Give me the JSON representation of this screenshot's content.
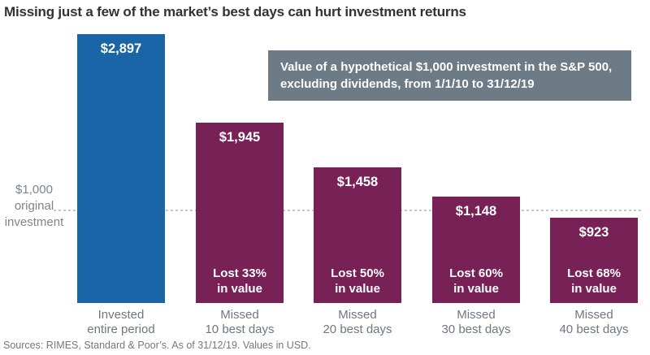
{
  "annotation": {
    "line1": "Value of a hypothetical $1,000 investment in the S&P 500,",
    "line2": "excluding dividends, from 1/1/10 to 31/12/19",
    "bg_color": "#6c7b86",
    "text_color": "#ffffff"
  },
  "reference": {
    "label_line1": "$1,000",
    "label_line2": "original",
    "label_line3": "investment"
  },
  "footer": {
    "source": "Sources: RIMES, Standard & Poor’s. As of 31/12/19. Values in USD."
  },
  "colors": {
    "highlight_bar": "#1a65a8",
    "loss_bar": "#772157",
    "dashed_line": "#c3c7cb",
    "category_label": "#6f7780",
    "title": "#303234",
    "source": "#74787c",
    "axis_label": "#7d848d"
  },
  "chart_data": {
    "type": "bar",
    "title": "Missing just a few of the market’s best days can hurt investment returns",
    "categories": [
      "Invested entire period",
      "Missed 10 best days",
      "Missed 20 best days",
      "Missed 30 best days",
      "Missed 40 best days"
    ],
    "category_lines": [
      [
        "Invested",
        "entire period"
      ],
      [
        "Missed",
        "10 best days"
      ],
      [
        "Missed",
        "20 best days"
      ],
      [
        "Missed",
        "30 best days"
      ],
      [
        "Missed",
        "40 best days"
      ]
    ],
    "values": [
      2897,
      1945,
      1458,
      1148,
      923
    ],
    "value_labels": [
      "$2,897",
      "$1,945",
      "$1,458",
      "$1,148",
      "$923"
    ],
    "loss_lines": [
      null,
      [
        "Lost 33%",
        "in value"
      ],
      [
        "Lost 50%",
        "in value"
      ],
      [
        "Lost 60%",
        "in value"
      ],
      [
        "Lost 68%",
        "in value"
      ]
    ],
    "bar_colors": [
      "#1a65a8",
      "#772157",
      "#772157",
      "#772157",
      "#772157"
    ],
    "ylim": [
      0,
      2897
    ],
    "reference_line": {
      "value": 1000,
      "label": "$1,000 original investment"
    },
    "grid": false,
    "legend": null
  }
}
